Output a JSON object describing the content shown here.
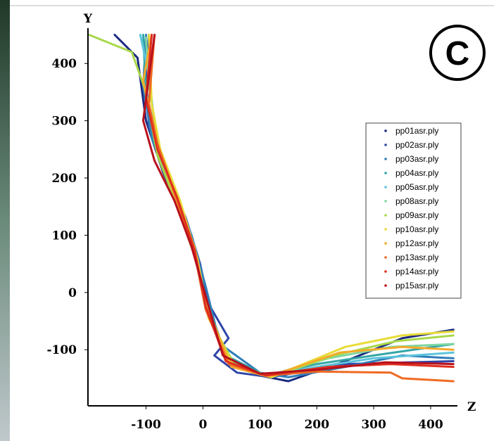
{
  "chart_data": {
    "type": "line",
    "x_label": "Z",
    "y_label": "Y",
    "annotation": "C",
    "xlim": [
      -202,
      447
    ],
    "ylim": [
      -198,
      474
    ],
    "xticks": [
      -100,
      0,
      100,
      200,
      300,
      400
    ],
    "yticks": [
      -100,
      0,
      100,
      200,
      300,
      400
    ],
    "legend": "right",
    "series": [
      {
        "name": "pp01asr.ply",
        "color": "#1c2a80",
        "x": [
          -155,
          -115,
          -100,
          -70,
          -40,
          -15,
          5,
          40,
          100,
          150,
          250,
          350,
          440
        ],
        "y": [
          450,
          410,
          300,
          210,
          140,
          70,
          -10,
          -110,
          -145,
          -155,
          -120,
          -80,
          -65
        ]
      },
      {
        "name": "pp02asr.ply",
        "color": "#2f45a8",
        "x": [
          -95,
          -100,
          -95,
          -60,
          -30,
          -5,
          10,
          45,
          20,
          60,
          120,
          250,
          440
        ],
        "y": [
          450,
          380,
          290,
          200,
          130,
          50,
          -20,
          -80,
          -110,
          -140,
          -148,
          -125,
          -120
        ]
      },
      {
        "name": "pp03asr.ply",
        "color": "#2f7db8",
        "x": [
          -100,
          -105,
          -90,
          -55,
          -20,
          5,
          30,
          100,
          150,
          250,
          350,
          440
        ],
        "y": [
          450,
          360,
          270,
          180,
          100,
          10,
          -90,
          -140,
          -148,
          -130,
          -110,
          -115
        ]
      },
      {
        "name": "pp04asr.ply",
        "color": "#35a6a6",
        "x": [
          -105,
          -100,
          -85,
          -50,
          -15,
          5,
          40,
          110,
          200,
          300,
          440
        ],
        "y": [
          450,
          350,
          260,
          170,
          80,
          -10,
          -110,
          -145,
          -125,
          -110,
          -90
        ]
      },
      {
        "name": "pp05asr.ply",
        "color": "#5cc4dc",
        "x": [
          -110,
          -95,
          -80,
          -45,
          -15,
          5,
          45,
          110,
          200,
          300,
          440
        ],
        "y": [
          450,
          380,
          250,
          160,
          70,
          -30,
          -120,
          -146,
          -130,
          -115,
          -105
        ]
      },
      {
        "name": "pp08asr.ply",
        "color": "#7ed6a0",
        "x": [
          -100,
          -95,
          -75,
          -40,
          -10,
          10,
          50,
          115,
          220,
          330,
          440
        ],
        "y": [
          445,
          360,
          240,
          150,
          60,
          -40,
          -125,
          -145,
          -115,
          -95,
          -90
        ]
      },
      {
        "name": "pp09asr.ply",
        "color": "#a8d84a",
        "x": [
          -200,
          -125,
          -100,
          -80,
          -45,
          -10,
          10,
          55,
          120,
          230,
          340,
          440
        ],
        "y": [
          450,
          420,
          350,
          240,
          150,
          50,
          -45,
          -125,
          -148,
          -110,
          -85,
          -75
        ]
      },
      {
        "name": "pp10asr.ply",
        "color": "#e8dc38",
        "x": [
          -95,
          -90,
          -75,
          -40,
          -10,
          10,
          55,
          120,
          250,
          350,
          440
        ],
        "y": [
          450,
          330,
          250,
          160,
          60,
          -45,
          -130,
          -148,
          -95,
          -75,
          -68
        ]
      },
      {
        "name": "pp12asr.ply",
        "color": "#f4aa2c",
        "x": [
          -90,
          -105,
          -85,
          -50,
          -15,
          5,
          50,
          115,
          240,
          350,
          440
        ],
        "y": [
          450,
          370,
          270,
          170,
          80,
          -20,
          -130,
          -147,
          -105,
          -95,
          -100
        ]
      },
      {
        "name": "pp13asr.ply",
        "color": "#ef6a22",
        "x": [
          -85,
          -95,
          -80,
          -45,
          -15,
          5,
          45,
          110,
          200,
          330,
          350,
          440
        ],
        "y": [
          450,
          330,
          260,
          160,
          70,
          -30,
          -125,
          -145,
          -138,
          -140,
          -150,
          -155
        ]
      },
      {
        "name": "pp14asr.ply",
        "color": "#e02e1e",
        "x": [
          -90,
          -100,
          -80,
          -45,
          -15,
          5,
          40,
          110,
          220,
          330,
          440
        ],
        "y": [
          450,
          340,
          250,
          165,
          75,
          -25,
          -120,
          -145,
          -130,
          -125,
          -130
        ]
      },
      {
        "name": "pp15asr.ply",
        "color": "#b8101c",
        "x": [
          -85,
          -105,
          -85,
          -50,
          -20,
          0,
          35,
          100,
          200,
          320,
          440
        ],
        "y": [
          450,
          300,
          230,
          160,
          80,
          10,
          -110,
          -142,
          -135,
          -122,
          -125
        ]
      }
    ]
  }
}
